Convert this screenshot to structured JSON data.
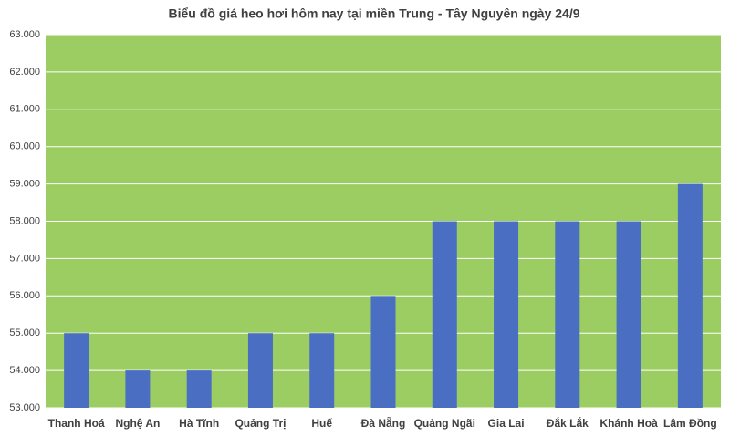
{
  "chart_data": {
    "type": "bar",
    "title": "Biểu đồ giá heo hơi hôm nay tại miền Trung - Tây Nguyên ngày 24/9",
    "categories": [
      "Thanh Hoá",
      "Nghệ An",
      "Hà Tĩnh",
      "Quảng Trị",
      "Huế",
      "Đà Nẵng",
      "Quảng Ngãi",
      "Gia Lai",
      "Đắk Lắk",
      "Khánh Hoà",
      "Lâm Đồng"
    ],
    "values": [
      55000,
      54000,
      54000,
      55000,
      55000,
      56000,
      58000,
      58000,
      58000,
      58000,
      59000
    ],
    "color": "#4a6fc2",
    "ylim": [
      53000,
      63000
    ],
    "yticks": [
      {
        "value": 53000,
        "label": "53.000"
      },
      {
        "value": 54000,
        "label": "54.000"
      },
      {
        "value": 55000,
        "label": "55.000"
      },
      {
        "value": 56000,
        "label": "56.000"
      },
      {
        "value": 57000,
        "label": "57.000"
      },
      {
        "value": 58000,
        "label": "58.000"
      },
      {
        "value": 59000,
        "label": "59.000"
      },
      {
        "value": 60000,
        "label": "60.000"
      },
      {
        "value": 61000,
        "label": "61.000"
      },
      {
        "value": 62000,
        "label": "62.000"
      },
      {
        "value": 63000,
        "label": "63.000"
      }
    ],
    "grid": true
  }
}
